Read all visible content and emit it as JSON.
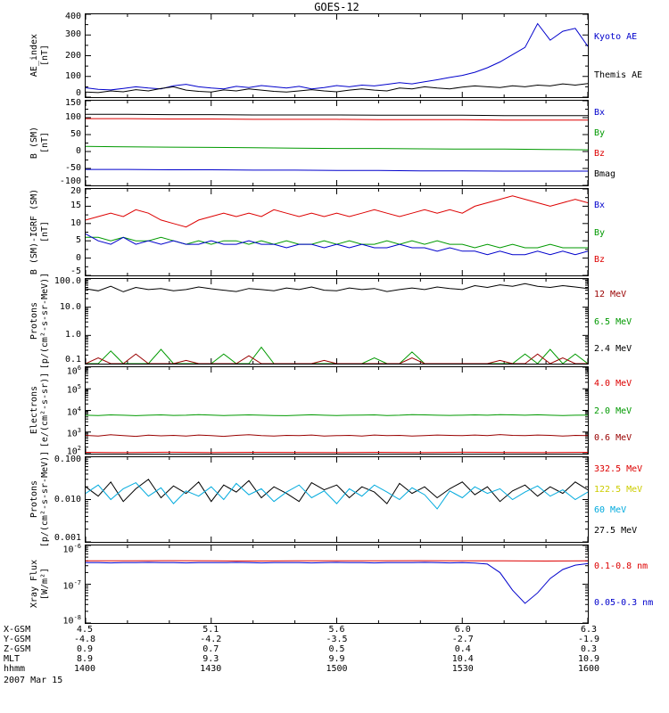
{
  "title": "GOES-12",
  "x_axis": {
    "range_minutes": [
      0,
      120
    ],
    "major_tick_minutes": [
      0,
      30,
      60,
      90,
      120
    ],
    "minor_tick_step_minutes": 10,
    "labels": [
      "1400",
      "1430",
      "1500",
      "1530",
      "1600"
    ]
  },
  "chart_data": [
    {
      "type": "line",
      "yscale": "linear",
      "ylim": [
        0,
        400
      ],
      "yticks": [
        0,
        100,
        200,
        300,
        400
      ],
      "ytick_labels": [
        "0",
        "100",
        "200",
        "300",
        "400"
      ],
      "ylabel": "AE_index\n[nT]",
      "series": [
        {
          "name": "Kyoto AE",
          "color": "#0000cc",
          "y": [
            45,
            38,
            35,
            42,
            50,
            44,
            40,
            55,
            62,
            50,
            44,
            40,
            52,
            46,
            56,
            50,
            44,
            52,
            40,
            46,
            56,
            50,
            58,
            54,
            62,
            70,
            64,
            74,
            84,
            95,
            105,
            120,
            142,
            170,
            205,
            240,
            355,
            275,
            318,
            332,
            245
          ]
        },
        {
          "name": "Themis AE",
          "color": "#000000",
          "y": [
            25,
            22,
            30,
            26,
            36,
            30,
            42,
            50,
            34,
            28,
            25,
            35,
            30,
            40,
            34,
            28,
            25,
            30,
            36,
            30,
            26,
            34,
            40,
            34,
            30,
            44,
            40,
            50,
            44,
            40,
            48,
            54,
            50,
            46,
            55,
            50,
            58,
            54,
            64,
            58,
            66
          ]
        }
      ],
      "right_labels": [
        {
          "text": "Kyoto AE",
          "color": "#0000cc"
        },
        {
          "text": "Themis AE",
          "color": "#000000"
        }
      ]
    },
    {
      "type": "line",
      "yscale": "linear",
      "ylim": [
        -100,
        150
      ],
      "yticks": [
        -100,
        -50,
        0,
        50,
        100,
        150
      ],
      "ytick_labels": [
        "-100",
        "-50",
        "0",
        "50",
        "100",
        "150"
      ],
      "ylabel": "B (SM)\n[nT]",
      "series": [
        {
          "name": "Bmag",
          "color": "#000000",
          "y": [
            110,
            110,
            109,
            109,
            108,
            108,
            108,
            107,
            107,
            107,
            106,
            106,
            106
          ]
        },
        {
          "name": "Bz",
          "color": "#dd0000",
          "y": [
            97,
            97,
            96,
            96,
            95,
            95,
            95,
            94,
            94,
            94,
            93,
            93,
            93
          ]
        },
        {
          "name": "By",
          "color": "#009900",
          "y": [
            15,
            14,
            13,
            12,
            11,
            10,
            9,
            9,
            8,
            7,
            7,
            6,
            5
          ]
        },
        {
          "name": "Bx",
          "color": "#0000cc",
          "y": [
            -53,
            -53,
            -54,
            -54,
            -55,
            -55,
            -56,
            -56,
            -57,
            -57,
            -58,
            -58,
            -58
          ]
        }
      ],
      "right_labels": [
        {
          "text": "Bx",
          "color": "#0000cc"
        },
        {
          "text": "By",
          "color": "#009900"
        },
        {
          "text": "Bz",
          "color": "#dd0000"
        },
        {
          "text": "Bmag",
          "color": "#000000"
        }
      ]
    },
    {
      "type": "line",
      "yscale": "linear",
      "ylim": [
        -5,
        20
      ],
      "yticks": [
        -5,
        0,
        5,
        10,
        15,
        20
      ],
      "ytick_labels": [
        "-5",
        "0",
        "5",
        "10",
        "15",
        "20"
      ],
      "ylabel": "B (SM)-IGRF (SM)\n[nT]",
      "series": [
        {
          "name": "Bz",
          "color": "#dd0000",
          "y": [
            11,
            12,
            13,
            12,
            14,
            13,
            11,
            10,
            9,
            11,
            12,
            13,
            12,
            13,
            12,
            14,
            13,
            12,
            13,
            12,
            13,
            12,
            13,
            14,
            13,
            12,
            13,
            14,
            13,
            14,
            13,
            15,
            16,
            17,
            18,
            17,
            16,
            15,
            16,
            17,
            16
          ]
        },
        {
          "name": "By",
          "color": "#009900",
          "y": [
            6,
            6,
            5,
            6,
            5,
            5,
            6,
            5,
            4,
            5,
            4,
            5,
            5,
            4,
            5,
            4,
            5,
            4,
            4,
            5,
            4,
            5,
            4,
            4,
            5,
            4,
            5,
            4,
            5,
            4,
            4,
            3,
            4,
            3,
            4,
            3,
            3,
            4,
            3,
            3,
            3
          ]
        },
        {
          "name": "Bx",
          "color": "#0000cc",
          "y": [
            7,
            5,
            4,
            6,
            4,
            5,
            4,
            5,
            4,
            4,
            5,
            4,
            4,
            5,
            4,
            4,
            3,
            4,
            4,
            3,
            4,
            3,
            4,
            3,
            3,
            4,
            3,
            3,
            2,
            3,
            2,
            2,
            1,
            2,
            1,
            1,
            2,
            1,
            2,
            1,
            2
          ]
        }
      ],
      "right_labels": [
        {
          "text": "Bx",
          "color": "#0000cc"
        },
        {
          "text": "By",
          "color": "#009900"
        },
        {
          "text": "Bz",
          "color": "#dd0000"
        }
      ]
    },
    {
      "type": "line",
      "yscale": "log",
      "ylim": [
        0.1,
        100
      ],
      "yticks": [
        0.1,
        1,
        10,
        100
      ],
      "ytick_labels": [
        "0.1",
        "1.0",
        "10.0",
        "100.0"
      ],
      "ylabel": "Protons\n[p/(cm²-s-sr-MeV)]",
      "series": [
        {
          "name": "2.4 MeV",
          "color": "#000000",
          "y": [
            45,
            38,
            55,
            35,
            50,
            42,
            46,
            38,
            42,
            52,
            45,
            40,
            36,
            46,
            42,
            38,
            48,
            42,
            52,
            40,
            38,
            48,
            42,
            46,
            36,
            42,
            48,
            42,
            52,
            46,
            42,
            58,
            50,
            62,
            55,
            68,
            55,
            50,
            58,
            52,
            46
          ]
        },
        {
          "name": "6.5 MeV",
          "color": "#009900",
          "y": [
            0.1,
            0.1,
            0.28,
            0.1,
            0.1,
            0.1,
            0.32,
            0.1,
            0.1,
            0.1,
            0.1,
            0.22,
            0.1,
            0.1,
            0.38,
            0.1,
            0.1,
            0.1,
            0.1,
            0.1,
            0.1,
            0.1,
            0.1,
            0.16,
            0.1,
            0.1,
            0.26,
            0.1,
            0.1,
            0.1,
            0.1,
            0.1,
            0.1,
            0.1,
            0.1,
            0.22,
            0.1,
            0.32,
            0.1,
            0.22,
            0.1
          ]
        },
        {
          "name": "12 MeV",
          "color": "#990000",
          "y": [
            0.1,
            0.16,
            0.1,
            0.1,
            0.22,
            0.1,
            0.1,
            0.1,
            0.13,
            0.1,
            0.1,
            0.1,
            0.1,
            0.19,
            0.1,
            0.1,
            0.1,
            0.1,
            0.1,
            0.13,
            0.1,
            0.1,
            0.1,
            0.1,
            0.1,
            0.1,
            0.16,
            0.1,
            0.1,
            0.1,
            0.1,
            0.1,
            0.1,
            0.13,
            0.1,
            0.1,
            0.22,
            0.1,
            0.16,
            0.1,
            0.1
          ]
        }
      ],
      "right_labels": [
        {
          "text": "12 MeV",
          "color": "#990000"
        },
        {
          "text": "6.5 MeV",
          "color": "#009900"
        },
        {
          "text": "2.4 MeV",
          "color": "#000000"
        }
      ]
    },
    {
      "type": "line",
      "yscale": "log",
      "ylim": [
        100,
        1000000
      ],
      "yticks": [
        100,
        1000,
        10000,
        100000,
        1000000
      ],
      "ytick_labels": [
        "10^2",
        "10^3",
        "10^4",
        "10^5",
        "10^6"
      ],
      "ylabel": "Electrons\n[e/(cm²-s-sr)]",
      "series": [
        {
          "name": "2.0 MeV",
          "color": "#009900",
          "y": [
            6000,
            5800,
            6200,
            6000,
            5700,
            6000,
            6200,
            5900,
            6000,
            6400,
            6100,
            5800,
            6000,
            6200,
            6000,
            5800,
            5700,
            6000,
            6300,
            6000,
            5800,
            6000,
            6100,
            6200,
            5800,
            6000,
            6400,
            6200,
            6000,
            5900,
            6000,
            6200,
            6000,
            6400,
            6200,
            6000,
            6300,
            6000,
            5800,
            6000,
            6100
          ]
        },
        {
          "name": "0.6 MeV",
          "color": "#990000",
          "y": [
            700,
            650,
            750,
            680,
            630,
            720,
            670,
            700,
            650,
            730,
            680,
            630,
            700,
            750,
            680,
            650,
            700,
            680,
            730,
            650,
            680,
            700,
            650,
            730,
            680,
            700,
            650,
            680,
            730,
            700,
            680,
            730,
            680,
            760,
            700,
            680,
            730,
            700,
            650,
            700,
            680
          ]
        },
        {
          "name": "4.0 MeV",
          "color": "#dd0000",
          "y": [
            115,
            112,
            116,
            113,
            115,
            114,
            112,
            115,
            113,
            116,
            114,
            113,
            115
          ]
        }
      ],
      "right_labels": [
        {
          "text": "4.0 MeV",
          "color": "#dd0000"
        },
        {
          "text": "2.0 MeV",
          "color": "#009900"
        },
        {
          "text": "0.6 MeV",
          "color": "#990000"
        }
      ]
    },
    {
      "type": "line",
      "yscale": "log",
      "ylim": [
        0.001,
        0.1
      ],
      "yticks": [
        0.001,
        0.01,
        0.1
      ],
      "ytick_labels": [
        "0.001",
        "0.010",
        "0.100"
      ],
      "ylabel": "Protons\n[p/(cm²-s-sr-MeV)]",
      "series": [
        {
          "name": "27.5 MeV",
          "color": "#000000",
          "y": [
            0.02,
            0.012,
            0.026,
            0.009,
            0.018,
            0.03,
            0.011,
            0.021,
            0.014,
            0.026,
            0.009,
            0.022,
            0.015,
            0.028,
            0.011,
            0.02,
            0.014,
            0.009,
            0.025,
            0.017,
            0.022,
            0.011,
            0.02,
            0.015,
            0.008,
            0.024,
            0.014,
            0.02,
            0.011,
            0.018,
            0.026,
            0.013,
            0.02,
            0.009,
            0.016,
            0.022,
            0.012,
            0.02,
            0.014,
            0.026,
            0.017
          ]
        },
        {
          "name": "60 MeV",
          "color": "#00aadd",
          "y": [
            0.014,
            0.022,
            0.01,
            0.018,
            0.025,
            0.012,
            0.019,
            0.008,
            0.016,
            0.012,
            0.02,
            0.01,
            0.024,
            0.013,
            0.018,
            0.009,
            0.015,
            0.022,
            0.011,
            0.016,
            0.008,
            0.018,
            0.012,
            0.022,
            0.015,
            0.01,
            0.019,
            0.013,
            0.006,
            0.016,
            0.011,
            0.02,
            0.014,
            0.018,
            0.01,
            0.015,
            0.021,
            0.012,
            0.017,
            0.01,
            0.015
          ]
        }
      ],
      "right_labels": [
        {
          "text": "332.5 MeV",
          "color": "#dd0000"
        },
        {
          "text": "122.5 MeV",
          "color": "#cccc00"
        },
        {
          "text": "60 MeV",
          "color": "#00aadd"
        },
        {
          "text": "27.5 MeV",
          "color": "#000000"
        }
      ]
    },
    {
      "type": "line",
      "yscale": "log",
      "ylim": [
        1e-08,
        1e-06
      ],
      "yticks": [
        1e-08,
        1e-07,
        1e-06
      ],
      "ytick_labels": [
        "10^-8",
        "10^-7",
        "10^-6"
      ],
      "ylabel": "Xray Flux\n[W/m²]",
      "series": [
        {
          "name": "0.1-0.8 nm",
          "color": "#dd0000",
          "y": [
            4e-07,
            4e-07,
            4.05e-07,
            4e-07,
            3.95e-07,
            4e-07,
            4e-07,
            4e-07,
            4.05e-07,
            4e-07,
            4e-07,
            3.95e-07,
            4e-07
          ]
        },
        {
          "name": "0.05-0.3 nm",
          "color": "#0000cc",
          "y": [
            3.6e-07,
            3.6e-07,
            3.55e-07,
            3.6e-07,
            3.6e-07,
            3.65e-07,
            3.6e-07,
            3.6e-07,
            3.55e-07,
            3.6e-07,
            3.6e-07,
            3.6e-07,
            3.65e-07,
            3.6e-07,
            3.55e-07,
            3.6e-07,
            3.6e-07,
            3.6e-07,
            3.55e-07,
            3.6e-07,
            3.65e-07,
            3.6e-07,
            3.6e-07,
            3.55e-07,
            3.6e-07,
            3.6e-07,
            3.6e-07,
            3.65e-07,
            3.6e-07,
            3.55e-07,
            3.6e-07,
            3.5e-07,
            3.3e-07,
            2e-07,
            7e-08,
            3.2e-08,
            6e-08,
            1.4e-07,
            2.4e-07,
            3.1e-07,
            3.4e-07
          ]
        }
      ],
      "right_labels": [
        {
          "text": "0.1-0.8 nm",
          "color": "#dd0000"
        },
        {
          "text": "0.05-0.3 nm",
          "color": "#0000cc"
        }
      ]
    }
  ],
  "bottom_axis": {
    "rows": [
      {
        "label": "X-GSM",
        "values": [
          "4.5",
          "5.1",
          "5.6",
          "6.0",
          "6.3"
        ]
      },
      {
        "label": "Y-GSM",
        "values": [
          "-4.8",
          "-4.2",
          "-3.5",
          "-2.7",
          "-1.9"
        ]
      },
      {
        "label": "Z-GSM",
        "values": [
          "0.9",
          "0.7",
          "0.5",
          "0.4",
          "0.3"
        ]
      },
      {
        "label": "MLT",
        "values": [
          "8.9",
          "9.3",
          "9.9",
          "10.4",
          "10.9"
        ]
      },
      {
        "label": "hhmm",
        "values": [
          "1400",
          "1430",
          "1500",
          "1530",
          "1600"
        ]
      }
    ],
    "date": "2007 Mar 15"
  }
}
